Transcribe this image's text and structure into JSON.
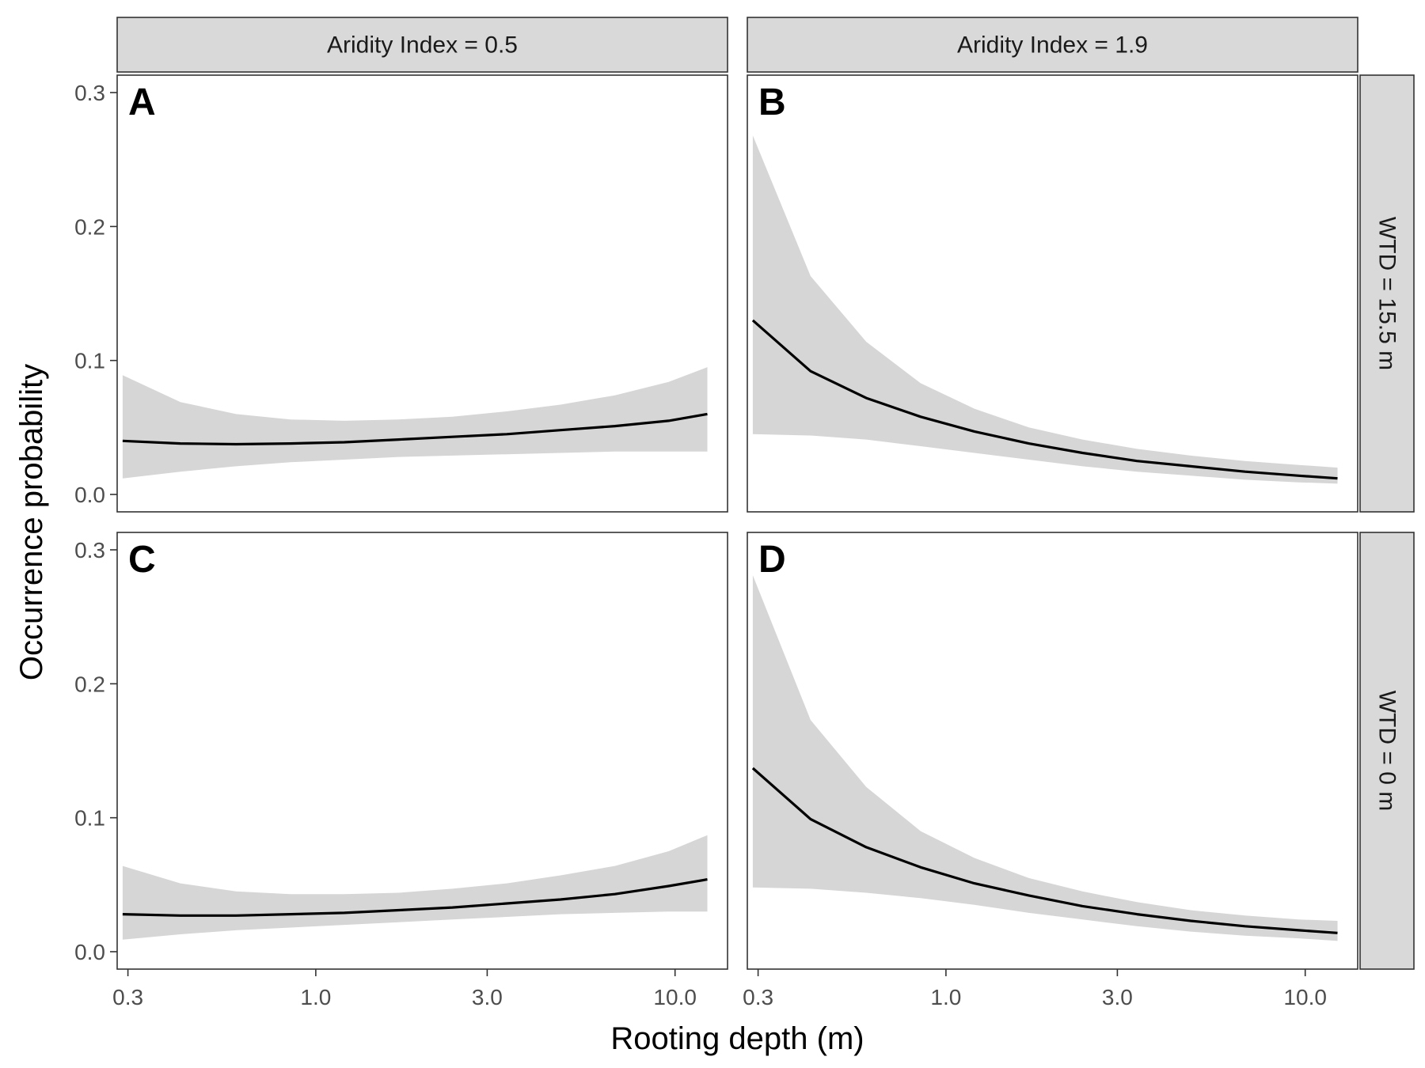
{
  "chart_data": {
    "type": "line",
    "xlabel": "Rooting depth (m)",
    "ylabel": "Occurrence probability",
    "x_scale": "log",
    "xlim": [
      0.28,
      14
    ],
    "ylim": [
      -0.013,
      0.313
    ],
    "xticks": [
      0.3,
      1.0,
      3.0,
      10.0
    ],
    "xtick_labels": [
      "0.3",
      "1.0",
      "3.0",
      "10.0"
    ],
    "yticks": [
      0.0,
      0.1,
      0.2,
      0.3
    ],
    "ytick_labels": [
      "0.0",
      "0.1",
      "0.2",
      "0.3"
    ],
    "grid": false,
    "columns": [
      "Aridity Index = 0.5",
      "Aridity Index = 1.9"
    ],
    "rows": [
      "WTD = 15.5 m",
      "WTD = 0 m"
    ],
    "panels": [
      {
        "letter": "A",
        "row": 0,
        "col": 0,
        "x": [
          0.29,
          0.42,
          0.6,
          0.85,
          1.2,
          1.7,
          2.4,
          3.4,
          4.8,
          6.8,
          9.6,
          12.3
        ],
        "y": [
          0.04,
          0.038,
          0.0375,
          0.038,
          0.039,
          0.041,
          0.043,
          0.045,
          0.048,
          0.051,
          0.055,
          0.06
        ],
        "lower": [
          0.012,
          0.017,
          0.021,
          0.024,
          0.026,
          0.028,
          0.029,
          0.03,
          0.031,
          0.032,
          0.032,
          0.032
        ],
        "upper": [
          0.089,
          0.069,
          0.06,
          0.056,
          0.055,
          0.056,
          0.058,
          0.062,
          0.067,
          0.074,
          0.084,
          0.095
        ]
      },
      {
        "letter": "B",
        "row": 0,
        "col": 1,
        "x": [
          0.29,
          0.42,
          0.6,
          0.85,
          1.2,
          1.7,
          2.4,
          3.4,
          4.8,
          6.8,
          9.6,
          12.3
        ],
        "y": [
          0.13,
          0.092,
          0.072,
          0.058,
          0.047,
          0.038,
          0.031,
          0.025,
          0.021,
          0.017,
          0.014,
          0.012
        ],
        "lower": [
          0.045,
          0.044,
          0.041,
          0.036,
          0.031,
          0.026,
          0.021,
          0.017,
          0.014,
          0.011,
          0.009,
          0.008
        ],
        "upper": [
          0.268,
          0.163,
          0.114,
          0.083,
          0.064,
          0.05,
          0.041,
          0.034,
          0.029,
          0.025,
          0.022,
          0.02
        ]
      },
      {
        "letter": "C",
        "row": 1,
        "col": 0,
        "x": [
          0.29,
          0.42,
          0.6,
          0.85,
          1.2,
          1.7,
          2.4,
          3.4,
          4.8,
          6.8,
          9.6,
          12.3
        ],
        "y": [
          0.028,
          0.027,
          0.027,
          0.028,
          0.029,
          0.031,
          0.033,
          0.036,
          0.039,
          0.043,
          0.049,
          0.054
        ],
        "lower": [
          0.009,
          0.013,
          0.016,
          0.018,
          0.02,
          0.022,
          0.024,
          0.026,
          0.028,
          0.029,
          0.03,
          0.03
        ],
        "upper": [
          0.064,
          0.051,
          0.045,
          0.043,
          0.043,
          0.044,
          0.047,
          0.051,
          0.057,
          0.064,
          0.075,
          0.087
        ]
      },
      {
        "letter": "D",
        "row": 1,
        "col": 1,
        "x": [
          0.29,
          0.42,
          0.6,
          0.85,
          1.2,
          1.7,
          2.4,
          3.4,
          4.8,
          6.8,
          9.6,
          12.3
        ],
        "y": [
          0.137,
          0.099,
          0.078,
          0.063,
          0.051,
          0.042,
          0.034,
          0.028,
          0.023,
          0.019,
          0.016,
          0.014
        ],
        "lower": [
          0.048,
          0.047,
          0.044,
          0.04,
          0.035,
          0.029,
          0.024,
          0.019,
          0.015,
          0.012,
          0.01,
          0.008
        ],
        "upper": [
          0.281,
          0.173,
          0.123,
          0.09,
          0.07,
          0.055,
          0.045,
          0.037,
          0.031,
          0.027,
          0.024,
          0.023
        ]
      }
    ]
  }
}
